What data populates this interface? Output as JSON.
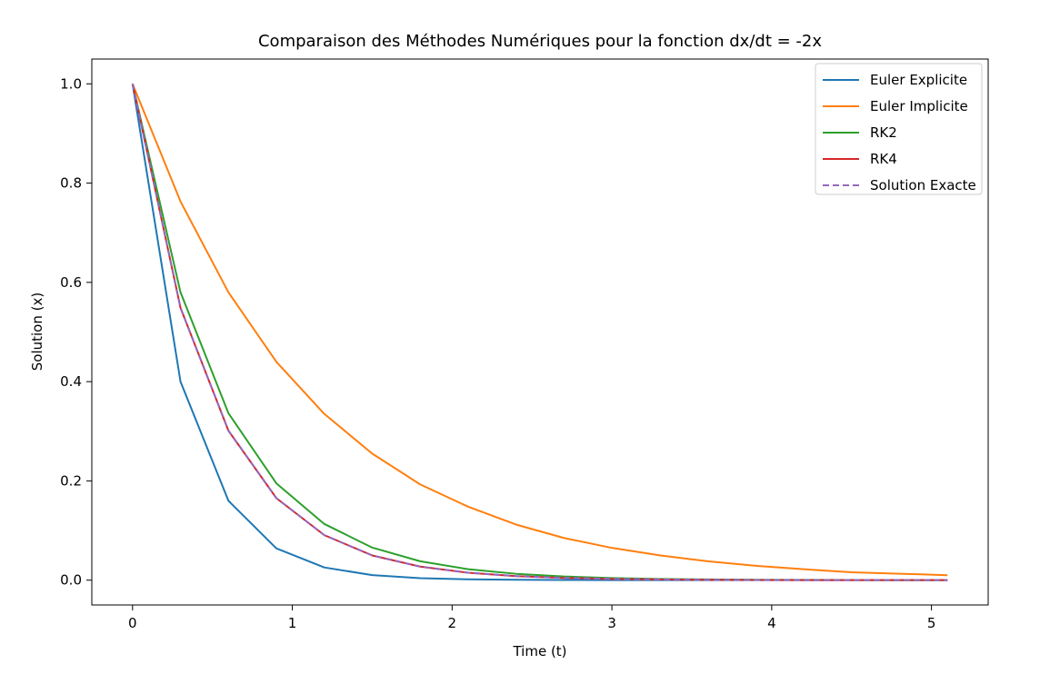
{
  "chart_data": {
    "type": "line",
    "title": "Comparaison des Méthodes Numériques pour la fonction dx/dt = -2x",
    "xlabel": "Time (t)",
    "ylabel": "Solution (x)",
    "xlim": [
      -0.255,
      5.355
    ],
    "ylim": [
      -0.05,
      1.05
    ],
    "xticks": [
      0,
      1,
      2,
      3,
      4,
      5
    ],
    "xtick_labels": [
      "0",
      "1",
      "2",
      "3",
      "4",
      "5"
    ],
    "yticks": [
      0.0,
      0.2,
      0.4,
      0.6,
      0.8,
      1.0
    ],
    "ytick_labels": [
      "0.0",
      "0.2",
      "0.4",
      "0.6",
      "0.8",
      "1.0"
    ],
    "grid": false,
    "legend_position": "top-right",
    "x": [
      0,
      0.3,
      0.6,
      0.9,
      1.2,
      1.5,
      1.8,
      2.1,
      2.4,
      2.7,
      3.0,
      3.3,
      3.6,
      3.9,
      4.2,
      4.5,
      4.8,
      5.1
    ],
    "series": [
      {
        "name": "Euler Explicite",
        "color": "#1f77b4",
        "dashed": false,
        "values": [
          1.0,
          0.4,
          0.16,
          0.064,
          0.0256,
          0.0102,
          0.0041,
          0.0016,
          0.0007,
          0.0003,
          0.0001,
          0.0,
          0.0,
          0.0,
          0.0,
          0.0,
          0.0,
          0.0
        ]
      },
      {
        "name": "Euler Implicite",
        "color": "#ff7f0e",
        "dashed": false,
        "values": [
          1.0,
          0.763,
          0.58,
          0.44,
          0.335,
          0.255,
          0.193,
          0.148,
          0.112,
          0.085,
          0.065,
          0.05,
          0.038,
          0.029,
          0.022,
          0.016,
          0.013,
          0.01
        ]
      },
      {
        "name": "RK2",
        "color": "#2ca02c",
        "dashed": false,
        "values": [
          1.0,
          0.58,
          0.3364,
          0.1951,
          0.1132,
          0.0656,
          0.0381,
          0.0221,
          0.0128,
          0.0074,
          0.0043,
          0.0025,
          0.0015,
          0.0008,
          0.0005,
          0.0003,
          0.0002,
          0.0001
        ]
      },
      {
        "name": "RK4",
        "color": "#d62728",
        "dashed": false,
        "values": [
          1.0,
          0.5488,
          0.3012,
          0.1653,
          0.0907,
          0.0498,
          0.0273,
          0.015,
          0.0082,
          0.0045,
          0.0025,
          0.0014,
          0.0007,
          0.0004,
          0.0002,
          0.0001,
          0.0001,
          0.0
        ]
      },
      {
        "name": "Solution Exacte",
        "color": "#9467bd",
        "dashed": true,
        "values": [
          1.0,
          0.5488,
          0.3012,
          0.1653,
          0.0907,
          0.0498,
          0.0273,
          0.015,
          0.0082,
          0.0045,
          0.0025,
          0.0014,
          0.0007,
          0.0004,
          0.0002,
          0.0001,
          0.0001,
          0.0
        ]
      }
    ]
  }
}
